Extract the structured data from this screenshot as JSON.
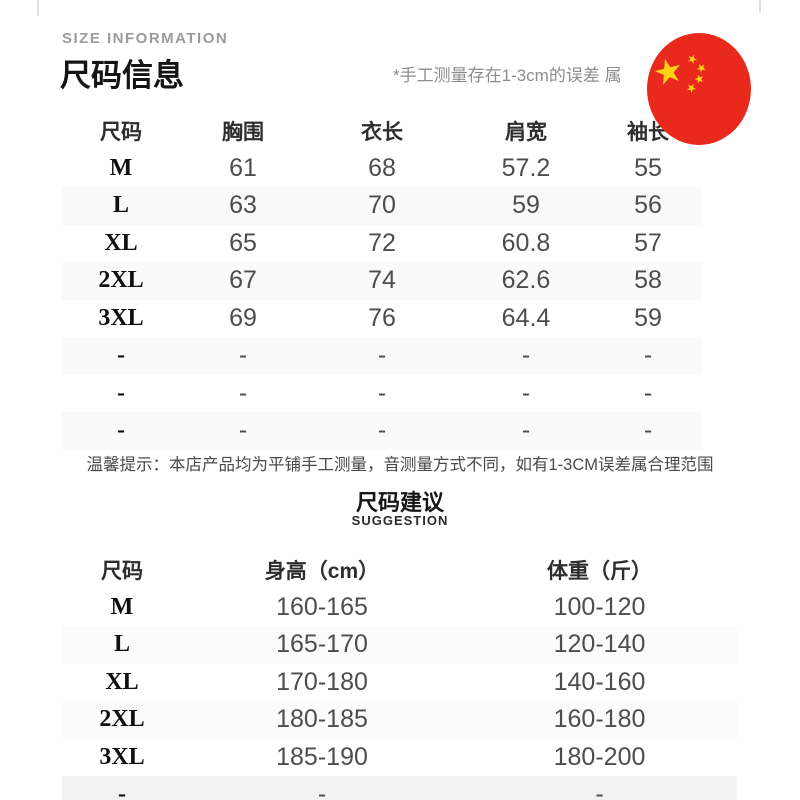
{
  "header": {
    "eyebrow": "SIZE INFORMATION",
    "title": "尺码信息",
    "measure_note": "*手工测量存在1-3cm的误差 属"
  },
  "flag": {
    "red": "#e8291c",
    "yellow": "#fcd116",
    "star_glyph": "★"
  },
  "notice": "温馨提示：本店产品均为平铺手工测量，音测量方式不同，如有1-3CM误差属合理范围",
  "suggestion_header": {
    "title": "尺码建议",
    "subtitle": "SUGGESTION"
  },
  "chart_data": [
    {
      "type": "table",
      "name": "size_measurements",
      "title": "尺码信息",
      "columns": [
        "尺码",
        "胸围",
        "衣长",
        "肩宽",
        "袖长"
      ],
      "rows": [
        [
          "M",
          "61",
          "68",
          "57.2",
          "55"
        ],
        [
          "L",
          "63",
          "70",
          "59",
          "56"
        ],
        [
          "XL",
          "65",
          "72",
          "60.8",
          "57"
        ],
        [
          "2XL",
          "67",
          "74",
          "62.6",
          "58"
        ],
        [
          "3XL",
          "69",
          "76",
          "64.4",
          "59"
        ],
        [
          "-",
          "-",
          "-",
          "-",
          "-"
        ],
        [
          "-",
          "-",
          "-",
          "-",
          "-"
        ],
        [
          "-",
          "-",
          "-",
          "-",
          "-"
        ]
      ]
    },
    {
      "type": "table",
      "name": "size_suggestion",
      "title": "尺码建议",
      "columns": [
        "尺码",
        "身高（cm）",
        "体重（斤）"
      ],
      "rows": [
        [
          "M",
          "160-165",
          "100-120"
        ],
        [
          "L",
          "165-170",
          "120-140"
        ],
        [
          "XL",
          "170-180",
          "140-160"
        ],
        [
          "2XL",
          "180-185",
          "160-180"
        ],
        [
          "3XL",
          "185-190",
          "180-200"
        ],
        [
          "-",
          "-",
          "-"
        ]
      ]
    }
  ]
}
